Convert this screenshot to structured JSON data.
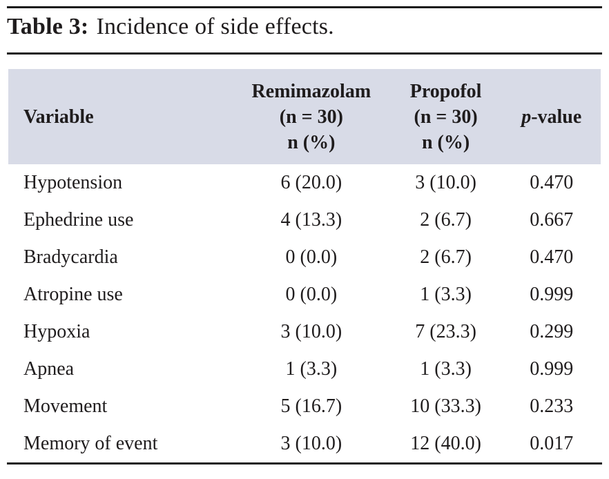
{
  "title": {
    "label": "Table 3:",
    "caption": "Incidence of side effects."
  },
  "table": {
    "columns": {
      "variable": {
        "line1": "Variable"
      },
      "remimazolam": {
        "line1": "Remimazolam",
        "line2": "(n = 30)",
        "line3": "n (%)"
      },
      "propofol": {
        "line1": "Propofol",
        "line2": "(n = 30)",
        "line3": "n (%)"
      },
      "p_value": {
        "italic": "p",
        "rest": "-value"
      }
    },
    "rows": [
      {
        "variable": "Hypotension",
        "remimazolam": "6 (20.0)",
        "propofol": "3 (10.0)",
        "p": "0.470"
      },
      {
        "variable": "Ephedrine use",
        "remimazolam": "4 (13.3)",
        "propofol": "2 (6.7)",
        "p": "0.667"
      },
      {
        "variable": "Bradycardia",
        "remimazolam": "0 (0.0)",
        "propofol": "2 (6.7)",
        "p": "0.470"
      },
      {
        "variable": "Atropine use",
        "remimazolam": "0 (0.0)",
        "propofol": "1 (3.3)",
        "p": "0.999"
      },
      {
        "variable": "Hypoxia",
        "remimazolam": "3 (10.0)",
        "propofol": "7 (23.3)",
        "p": "0.299"
      },
      {
        "variable": "Apnea",
        "remimazolam": "1 (3.3)",
        "propofol": "1 (3.3)",
        "p": "0.999"
      },
      {
        "variable": "Movement",
        "remimazolam": "5 (16.7)",
        "propofol": "10 (33.3)",
        "p": "0.233"
      },
      {
        "variable": "Memory of event",
        "remimazolam": "3 (10.0)",
        "propofol": "12 (40.0)",
        "p": "0.017"
      }
    ]
  },
  "colors": {
    "header_bg": "#d8dbe7",
    "text": "#1f1c1d",
    "rule": "#1a1a1a"
  }
}
